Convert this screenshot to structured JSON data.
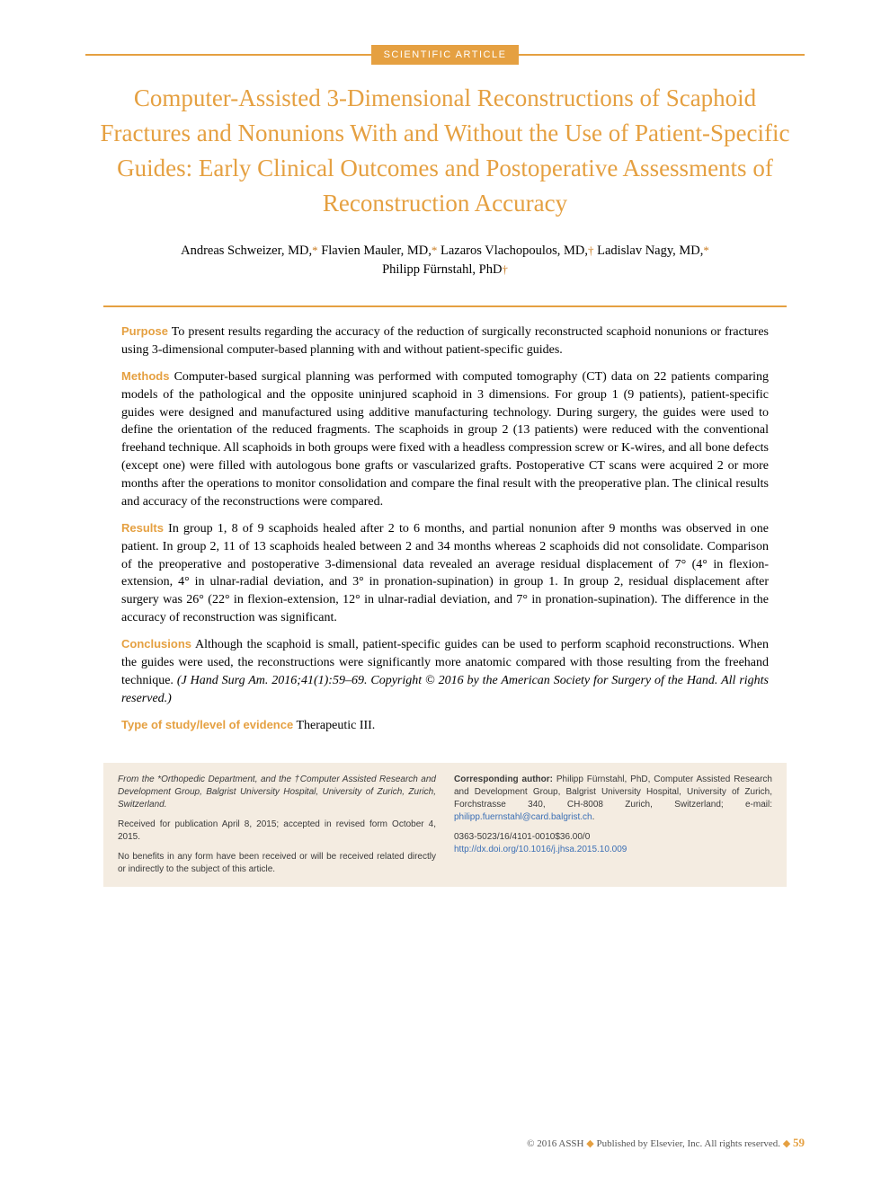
{
  "article_type": "SCIENTIFIC ARTICLE",
  "title": "Computer-Assisted 3-Dimensional Reconstructions of Scaphoid Fractures and Nonunions With and Without the Use of Patient-Specific Guides: Early Clinical Outcomes and Postoperative Assessments of Reconstruction Accuracy",
  "authors": [
    {
      "name": "Andreas Schweizer, MD,",
      "affil": "*"
    },
    {
      "name": "Flavien Mauler, MD,",
      "affil": "*"
    },
    {
      "name": "Lazaros Vlachopoulos, MD,",
      "affil": "†"
    },
    {
      "name": "Ladislav Nagy, MD,",
      "affil": "*"
    },
    {
      "name": "Philipp Fürnstahl, PhD",
      "affil": "†"
    }
  ],
  "abstract": {
    "purpose": {
      "label": "Purpose",
      "text": "To present results regarding the accuracy of the reduction of surgically reconstructed scaphoid nonunions or fractures using 3-dimensional computer-based planning with and without patient-specific guides."
    },
    "methods": {
      "label": "Methods",
      "text": "Computer-based surgical planning was performed with computed tomography (CT) data on 22 patients comparing models of the pathological and the opposite uninjured scaphoid in 3 dimensions. For group 1 (9 patients), patient-specific guides were designed and manufactured using additive manufacturing technology. During surgery, the guides were used to define the orientation of the reduced fragments. The scaphoids in group 2 (13 patients) were reduced with the conventional freehand technique. All scaphoids in both groups were fixed with a headless compression screw or K-wires, and all bone defects (except one) were filled with autologous bone grafts or vascularized grafts. Postoperative CT scans were acquired 2 or more months after the operations to monitor consolidation and compare the final result with the preoperative plan. The clinical results and accuracy of the reconstructions were compared."
    },
    "results": {
      "label": "Results",
      "text": "In group 1, 8 of 9 scaphoids healed after 2 to 6 months, and partial nonunion after 9 months was observed in one patient. In group 2, 11 of 13 scaphoids healed between 2 and 34 months whereas 2 scaphoids did not consolidate. Comparison of the preoperative and postoperative 3-dimensional data revealed an average residual displacement of 7° (4° in flexion-extension, 4° in ulnar-radial deviation, and 3° in pronation-supination) in group 1. In group 2, residual displacement after surgery was 26° (22° in flexion-extension, 12° in ulnar-radial deviation, and 7° in pronation-supination). The difference in the accuracy of reconstruction was significant."
    },
    "conclusions": {
      "label": "Conclusions",
      "text": "Although the scaphoid is small, patient-specific guides can be used to perform scaphoid reconstructions. When the guides were used, the reconstructions were significantly more anatomic compared with those resulting from the freehand technique.",
      "citation": "(J Hand Surg Am. 2016;41(1):59–69. Copyright © 2016 by the American Society for Surgery of the Hand. All rights reserved.)"
    },
    "evidence": {
      "label": "Type of study/level of evidence",
      "text": "Therapeutic III."
    }
  },
  "footer": {
    "left": {
      "affiliations": "From the *Orthopedic Department, and the †Computer Assisted Research and Development Group, Balgrist University Hospital, University of Zurich, Zurich, Switzerland.",
      "received": "Received for publication April 8, 2015; accepted in revised form October 4, 2015.",
      "disclosure": "No benefits in any form have been received or will be received related directly or indirectly to the subject of this article."
    },
    "right": {
      "corresponding_label": "Corresponding author:",
      "corresponding_text": "Philipp Fürnstahl, PhD, Computer Assisted Research and Development Group, Balgrist University Hospital, University of Zurich, Forchstrasse 340, CH-8008 Zurich, Switzerland; e-mail: ",
      "email": "philipp.fuernstahl@card.balgrist.ch",
      "email_suffix": ".",
      "issn": "0363-5023/16/4101-0010$36.00/0",
      "doi": "http://dx.doi.org/10.1016/j.jhsa.2015.10.009"
    }
  },
  "bottom": {
    "copyright": "© 2016 ASSH",
    "publisher": "Published by Elsevier, Inc. All rights reserved.",
    "page": "59"
  },
  "colors": {
    "accent": "#e5a041",
    "footer_bg": "#f4ece1",
    "link": "#3b6fb5",
    "text": "#222222"
  }
}
